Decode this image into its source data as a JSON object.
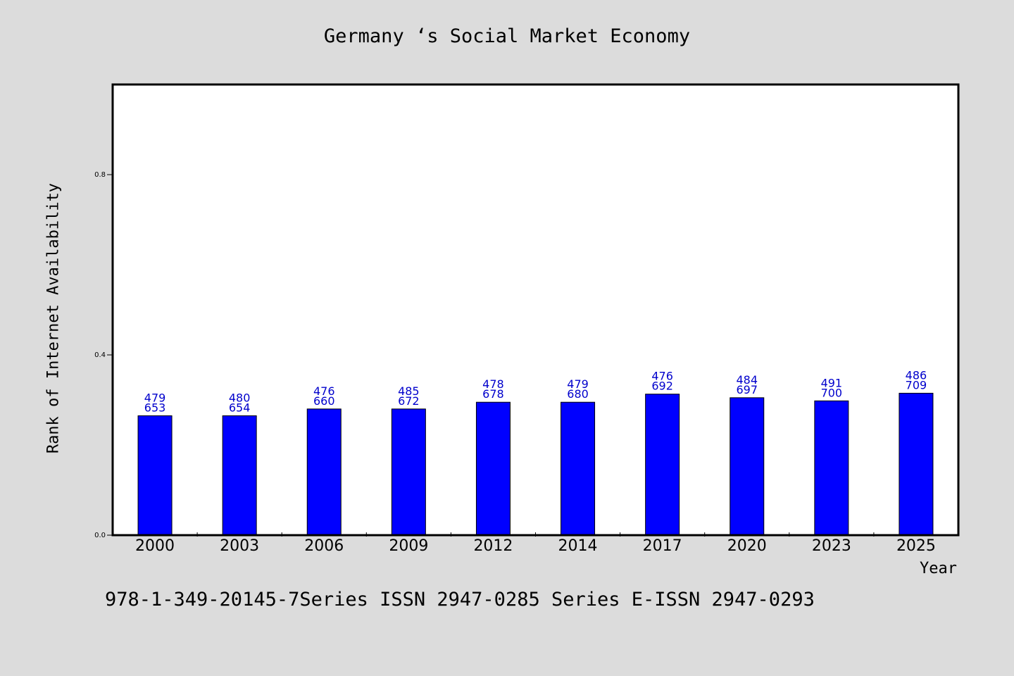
{
  "chart_data": {
    "type": "bar",
    "title": "Germany ‘s Social Market Economy",
    "xlabel": "Year",
    "ylabel": "Rank of Internet Availability",
    "categories": [
      "2000",
      "2003",
      "2006",
      "2009",
      "2012",
      "2014",
      "2017",
      "2020",
      "2023",
      "2025"
    ],
    "series": [
      {
        "values": [
          0.265,
          0.265,
          0.28,
          0.28,
          0.295,
          0.295,
          0.313,
          0.305,
          0.298,
          0.315
        ],
        "data_labels_top": [
          "479",
          "480",
          "476",
          "485",
          "478",
          "479",
          "476",
          "484",
          "491",
          "486"
        ],
        "data_labels_bottom": [
          "653",
          "654",
          "660",
          "672",
          "678",
          "680",
          "692",
          "697",
          "700",
          "709"
        ]
      }
    ],
    "ylim": [
      0,
      1.0
    ],
    "yticks": [
      0.0,
      0.4,
      0.8
    ],
    "ytick_labels": [
      "0.0",
      "0.4",
      "0.8"
    ],
    "grid": false,
    "bar_color": "#0000ff",
    "label_color": "#0000cc"
  },
  "footer": {
    "text": "978-1-349-20145-7Series ISSN 2947-0285 Series E-ISSN 2947-0293"
  }
}
